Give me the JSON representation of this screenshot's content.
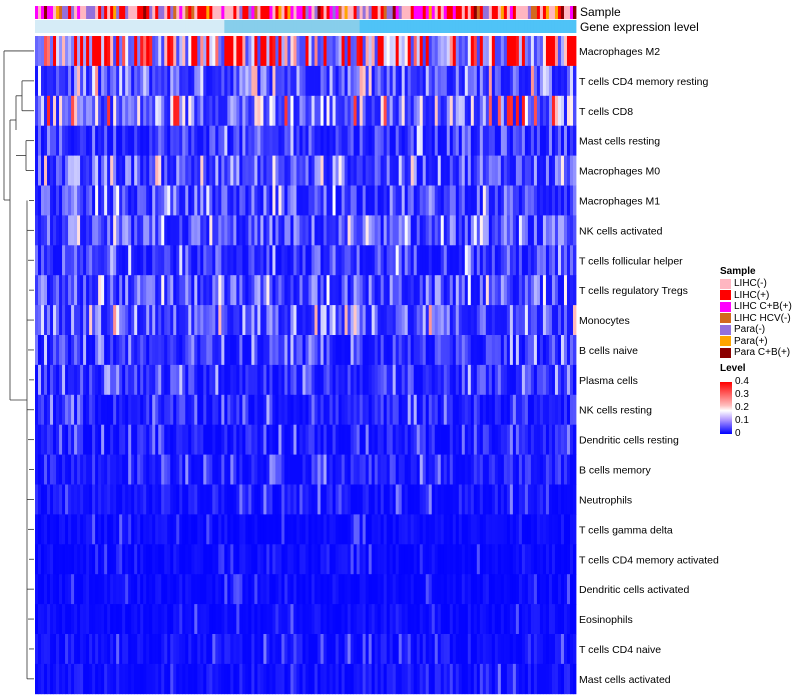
{
  "chart_data": {
    "type": "heatmap",
    "title": "",
    "annotation_tracks": [
      "Sample",
      "Gene expression level"
    ],
    "rows": [
      "Macrophages M2",
      "T cells CD4 memory resting",
      "T cells CD8",
      "Mast cells resting",
      "Macrophages M0",
      "Macrophages M1",
      "NK cells activated",
      "T cells follicular helper",
      "T cells regulatory  Tregs",
      "Monocytes",
      "B cells naive",
      "Plasma cells",
      "NK cells resting",
      "Dendritic cells resting",
      "B cells memory",
      "Neutrophils",
      "T cells gamma delta",
      "T cells CD4 memory activated",
      "Dendritic cells activated",
      "Eosinophils",
      "T cells CD4 naive",
      "Mast cells activated"
    ],
    "row_mean_levels": [
      0.26,
      0.08,
      0.11,
      0.05,
      0.07,
      0.06,
      0.06,
      0.05,
      0.06,
      0.08,
      0.04,
      0.04,
      0.03,
      0.025,
      0.03,
      0.02,
      0.01,
      0.01,
      0.01,
      0.01,
      0.015,
      0.015
    ],
    "color_scale": {
      "min": 0,
      "max": 0.4,
      "colors": [
        "#0000ff",
        "#ffffff",
        "#ff0000"
      ]
    },
    "legends": {
      "sample": {
        "title": "Sample",
        "items": [
          {
            "label": "LIHC(-)",
            "color": "#ffb6c1"
          },
          {
            "label": "LIHC(+)",
            "color": "#ff0000"
          },
          {
            "label": "LIHC C+B(+)",
            "color": "#ff00ff"
          },
          {
            "label": "LIHC HCV(-)",
            "color": "#d2691e"
          },
          {
            "label": "Para(-)",
            "color": "#9370db"
          },
          {
            "label": "Para(+)",
            "color": "#ffa500"
          },
          {
            "label": "Para C+B(+)",
            "color": "#8b0000"
          }
        ]
      },
      "level": {
        "title": "Level",
        "ticks": [
          "0.4",
          "0.3",
          "0.2",
          "0.1",
          "0"
        ]
      }
    },
    "gene_expression_colors": [
      "#87ceeb",
      "#4fc3f7"
    ]
  }
}
